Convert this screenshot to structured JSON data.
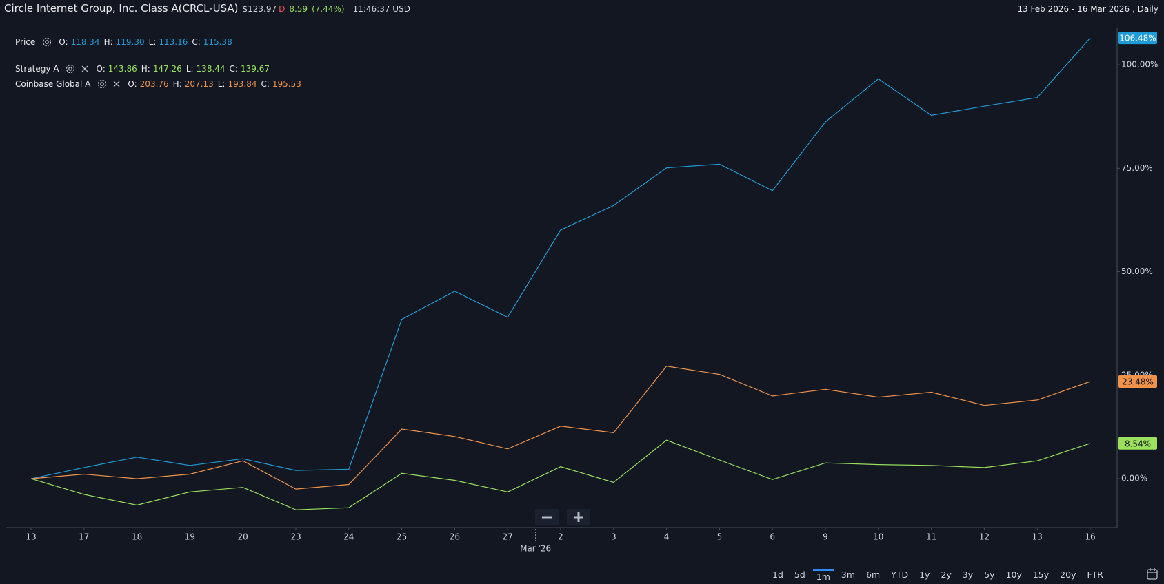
{
  "header": {
    "title": "Circle Internet Group, Inc. Class A(CRCL-USA)",
    "last_price": "$123.97",
    "session_flag": "D",
    "change": "8.59",
    "change_percent": "(7.44%)",
    "time": "11:46:37 USD",
    "date_range": "13 Feb 2026 - 16 Mar 2026 , Daily"
  },
  "chart_data": {
    "type": "line",
    "categories": [
      "13",
      "17",
      "18",
      "19",
      "20",
      "23",
      "24",
      "25",
      "26",
      "27",
      "2",
      "3",
      "4",
      "5",
      "6",
      "9",
      "10",
      "11",
      "12",
      "13",
      "16"
    ],
    "month_label": "Mar '26",
    "series": [
      {
        "name": "Price",
        "color": "#1f9bd7",
        "removable": false,
        "ohlc": [
          {
            "label": "O:",
            "value": "118.34"
          },
          {
            "label": "H:",
            "value": "119.30"
          },
          {
            "label": "L:",
            "value": "113.16"
          },
          {
            "label": "C:",
            "value": "115.38"
          }
        ],
        "values": [
          0,
          2.7,
          5.2,
          3.2,
          4.8,
          2.0,
          2.3,
          38.5,
          45.3,
          39.0,
          60.1,
          66.0,
          75.1,
          76.0,
          69.6,
          86.2,
          96.6,
          87.8,
          90.0,
          92.1,
          106.48
        ],
        "value_labels": [
          null,
          null,
          null,
          null,
          null,
          null,
          null,
          null,
          null,
          null,
          null,
          null,
          null,
          null,
          null,
          null,
          null,
          null,
          null,
          null,
          "106.48%"
        ]
      },
      {
        "name": "Strategy A",
        "color": "#9be15d",
        "removable": true,
        "ohlc": [
          {
            "label": "O:",
            "value": "143.86"
          },
          {
            "label": "H:",
            "value": "147.26"
          },
          {
            "label": "L:",
            "value": "138.44"
          },
          {
            "label": "C:",
            "value": "139.67"
          }
        ],
        "values": [
          0,
          -3.8,
          -6.4,
          -3.2,
          -2.1,
          -7.5,
          -7.0,
          1.3,
          -0.4,
          -3.2,
          2.9,
          -0.9,
          9.3,
          4.5,
          -0.2,
          3.8,
          3.4,
          3.2,
          2.7,
          4.3,
          8.54
        ],
        "value_labels": [
          null,
          null,
          null,
          null,
          null,
          null,
          null,
          null,
          null,
          null,
          null,
          null,
          null,
          null,
          null,
          null,
          null,
          null,
          null,
          null,
          "8.54%"
        ]
      },
      {
        "name": "Coinbase Global A",
        "color": "#f0934a",
        "removable": true,
        "ohlc": [
          {
            "label": "O:",
            "value": "203.76"
          },
          {
            "label": "H:",
            "value": "207.13"
          },
          {
            "label": "L:",
            "value": "193.84"
          },
          {
            "label": "C:",
            "value": "195.53"
          }
        ],
        "values": [
          0,
          1.1,
          0,
          1.1,
          4.3,
          -2.5,
          -1.4,
          12.0,
          10.2,
          7.2,
          12.7,
          11.1,
          27.2,
          25.2,
          20.0,
          21.6,
          19.7,
          20.9,
          17.7,
          19.0,
          23.48
        ],
        "value_labels": [
          null,
          null,
          null,
          null,
          null,
          null,
          null,
          null,
          null,
          null,
          null,
          null,
          null,
          null,
          null,
          null,
          null,
          null,
          null,
          null,
          "23.48%"
        ]
      }
    ],
    "ylim": [
      -11.8,
      108
    ],
    "yticks": [
      {
        "value": 0,
        "label": "0.00%"
      },
      {
        "value": 25,
        "label": "25.00%"
      },
      {
        "value": 50,
        "label": "50.00%"
      },
      {
        "value": 75,
        "label": "75.00%"
      },
      {
        "value": 100,
        "label": "100.00%"
      }
    ],
    "grid": false
  },
  "range_buttons": [
    {
      "label": "1d",
      "active": false
    },
    {
      "label": "5d",
      "active": false
    },
    {
      "label": "1m",
      "active": true
    },
    {
      "label": "3m",
      "active": false
    },
    {
      "label": "6m",
      "active": false
    },
    {
      "label": "YTD",
      "active": false
    },
    {
      "label": "1y",
      "active": false
    },
    {
      "label": "2y",
      "active": false
    },
    {
      "label": "3y",
      "active": false
    },
    {
      "label": "5y",
      "active": false
    },
    {
      "label": "10y",
      "active": false
    },
    {
      "label": "15y",
      "active": false
    },
    {
      "label": "20y",
      "active": false
    },
    {
      "label": "FTR",
      "active": false
    }
  ]
}
